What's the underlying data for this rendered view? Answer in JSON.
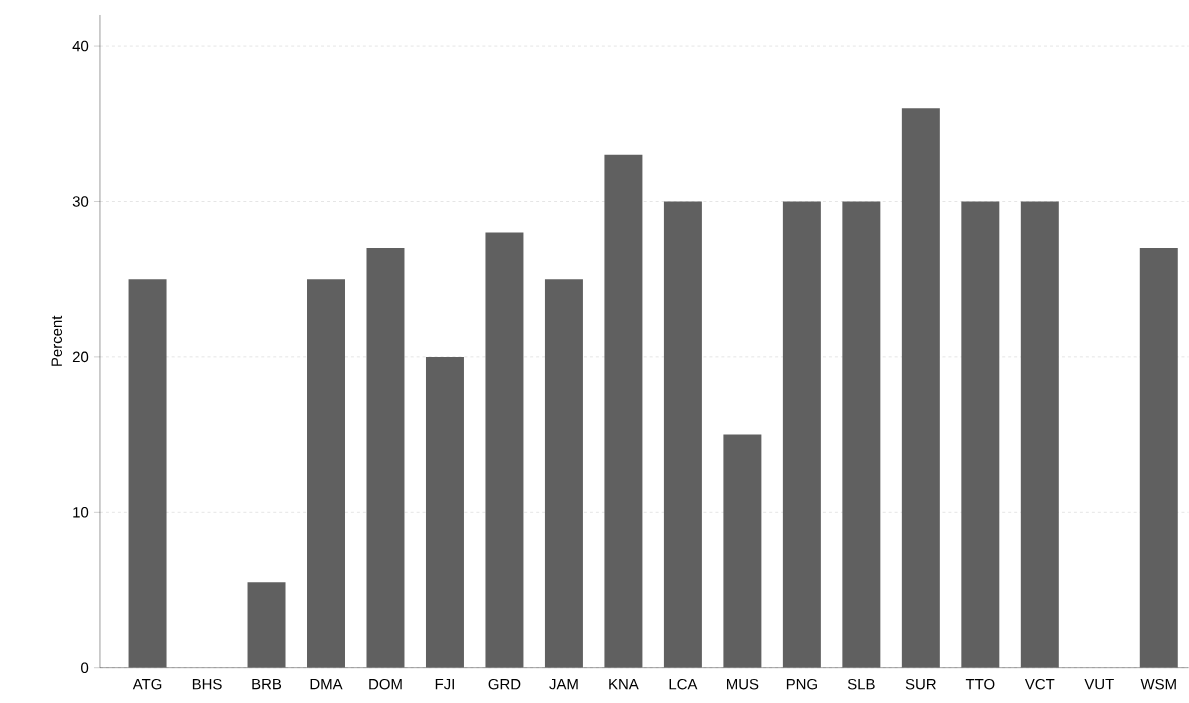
{
  "chart_data": {
    "type": "bar",
    "ylabel": "Percent",
    "categories": [
      "ATG",
      "BHS",
      "BRB",
      "DMA",
      "DOM",
      "FJI",
      "GRD",
      "JAM",
      "KNA",
      "LCA",
      "MUS",
      "PNG",
      "SLB",
      "SUR",
      "TTO",
      "VCT",
      "VUT",
      "WSM"
    ],
    "values": [
      25,
      null,
      5.5,
      25,
      27,
      20,
      28,
      25,
      33,
      30,
      15,
      30,
      30,
      36,
      30,
      30,
      null,
      27
    ],
    "color": "#606060",
    "ylim": [
      0,
      42
    ],
    "yticks": [
      0,
      10,
      20,
      30,
      40
    ],
    "grid": "y"
  }
}
